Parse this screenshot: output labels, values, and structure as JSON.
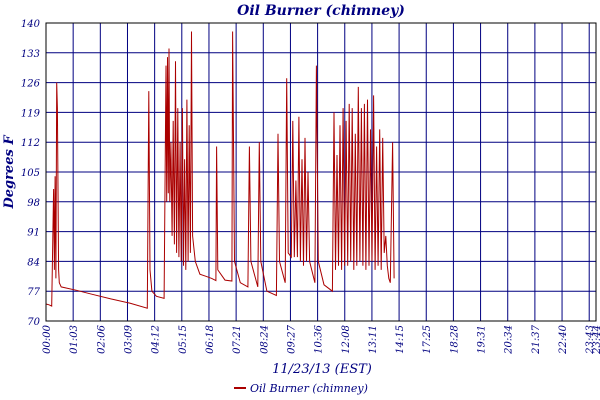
{
  "chart_data": {
    "type": "line",
    "title": "Oil Burner (chimney)",
    "xlabel": "11/23/13 (EST)",
    "ylabel": "Degrees F",
    "ylim": [
      70,
      140
    ],
    "xlim": [
      0,
      1444
    ],
    "grid": true,
    "legend_position": "bottom-center",
    "y_ticks": [
      "70",
      "77",
      "84",
      "91",
      "98",
      "105",
      "112",
      "119",
      "126",
      "133",
      "140"
    ],
    "x_ticks": [
      {
        "label": "00:00",
        "value": 0
      },
      {
        "label": "01:03",
        "value": 63
      },
      {
        "label": "02:06",
        "value": 126
      },
      {
        "label": "03:09",
        "value": 189
      },
      {
        "label": "04:12",
        "value": 252
      },
      {
        "label": "05:15",
        "value": 315
      },
      {
        "label": "06:18",
        "value": 378
      },
      {
        "label": "07:21",
        "value": 441
      },
      {
        "label": "08:24",
        "value": 504
      },
      {
        "label": "09:27",
        "value": 567
      },
      {
        "label": "10:36",
        "value": 636
      },
      {
        "label": "12:08",
        "value": 728
      },
      {
        "label": "13:11",
        "value": 791
      },
      {
        "label": "14:15",
        "value": 855
      },
      {
        "label": "17:25",
        "value": 1045
      },
      {
        "label": "18:28",
        "value": 1108
      },
      {
        "label": "19:31",
        "value": 1171
      },
      {
        "label": "20:34",
        "value": 1234
      },
      {
        "label": "21:37",
        "value": 1297
      },
      {
        "label": "22:40",
        "value": 1360
      },
      {
        "label": "23:43",
        "value": 1423
      },
      {
        "label": "23:44",
        "value": 1424
      }
    ],
    "x_tick_positions": [
      0,
      1,
      2,
      3,
      4,
      5,
      6,
      7,
      8,
      9,
      10,
      11,
      12,
      13,
      14,
      15,
      16,
      17,
      18,
      19,
      20,
      20.25
    ],
    "series": [
      {
        "name": "Oil Burner (chimney)",
        "color": "#aa0000",
        "points": [
          [
            0,
            74
          ],
          [
            8,
            73.8
          ],
          [
            15,
            73.5
          ],
          [
            20,
            101
          ],
          [
            22,
            82
          ],
          [
            24,
            104
          ],
          [
            26,
            80
          ],
          [
            28,
            126
          ],
          [
            30,
            120
          ],
          [
            33,
            82
          ],
          [
            35,
            79
          ],
          [
            40,
            78
          ],
          [
            80,
            77.2
          ],
          [
            120,
            76.3
          ],
          [
            170,
            75.2
          ],
          [
            220,
            74.2
          ],
          [
            266,
            73
          ],
          [
            270,
            124
          ],
          [
            273,
            82
          ],
          [
            278,
            77
          ],
          [
            290,
            75.8
          ],
          [
            310,
            75.3
          ],
          [
            315,
            130
          ],
          [
            317,
            98
          ],
          [
            319,
            132
          ],
          [
            321,
            100
          ],
          [
            323,
            134
          ],
          [
            325,
            98
          ],
          [
            328,
            112
          ],
          [
            331,
            90
          ],
          [
            334,
            117
          ],
          [
            337,
            88
          ],
          [
            340,
            131
          ],
          [
            343,
            86
          ],
          [
            346,
            120
          ],
          [
            349,
            85
          ],
          [
            352,
            112
          ],
          [
            355,
            84
          ],
          [
            358,
            120
          ],
          [
            361,
            83
          ],
          [
            364,
            108
          ],
          [
            367,
            82
          ],
          [
            370,
            122
          ],
          [
            373,
            84
          ],
          [
            376,
            116
          ],
          [
            379,
            86
          ],
          [
            382,
            138
          ],
          [
            385,
            90
          ],
          [
            392,
            84
          ],
          [
            404,
            81
          ],
          [
            420,
            80.5
          ],
          [
            435,
            80
          ],
          [
            446,
            79.5
          ],
          [
            448,
            111
          ],
          [
            451,
            82
          ],
          [
            470,
            79.6
          ],
          [
            488,
            79.4
          ],
          [
            490,
            138
          ],
          [
            495,
            84
          ],
          [
            510,
            79
          ],
          [
            530,
            78
          ],
          [
            534,
            111
          ],
          [
            538,
            84
          ],
          [
            556,
            78
          ],
          [
            560,
            112
          ],
          [
            564,
            84
          ],
          [
            580,
            77
          ],
          [
            605,
            76
          ],
          [
            609,
            114
          ],
          [
            613,
            84
          ],
          [
            628,
            79
          ],
          [
            632,
            127
          ],
          [
            636,
            86
          ],
          [
            644,
            85
          ],
          [
            648,
            117
          ],
          [
            652,
            85
          ],
          [
            656,
            103
          ],
          [
            660,
            85
          ],
          [
            664,
            118
          ],
          [
            668,
            84
          ],
          [
            672,
            108
          ],
          [
            676,
            83
          ],
          [
            680,
            113
          ],
          [
            684,
            84
          ],
          [
            688,
            105
          ],
          [
            692,
            84
          ],
          [
            706,
            79
          ],
          [
            710,
            130
          ],
          [
            715,
            84
          ],
          [
            730,
            78.5
          ],
          [
            752,
            77
          ],
          [
            756,
            119
          ],
          [
            760,
            82
          ],
          [
            764,
            109
          ],
          [
            768,
            83
          ],
          [
            772,
            116
          ],
          [
            776,
            82
          ],
          [
            780,
            120
          ],
          [
            784,
            83
          ],
          [
            788,
            117
          ],
          [
            792,
            83
          ],
          [
            796,
            121
          ],
          [
            800,
            84
          ],
          [
            804,
            120
          ],
          [
            808,
            82
          ],
          [
            812,
            114
          ],
          [
            816,
            83
          ],
          [
            820,
            125
          ],
          [
            824,
            84
          ],
          [
            828,
            120
          ],
          [
            832,
            83
          ],
          [
            836,
            121
          ],
          [
            840,
            82
          ],
          [
            844,
            122
          ],
          [
            848,
            83
          ],
          [
            852,
            115
          ],
          [
            856,
            84
          ],
          [
            860,
            123
          ],
          [
            864,
            82
          ],
          [
            868,
            111
          ],
          [
            872,
            83
          ],
          [
            876,
            115
          ],
          [
            880,
            82
          ],
          [
            884,
            113
          ],
          [
            888,
            86
          ],
          [
            892,
            90
          ],
          [
            896,
            83
          ],
          [
            900,
            80
          ],
          [
            904,
            79
          ],
          [
            907,
            96
          ],
          [
            910,
            112
          ],
          [
            914,
            80
          ]
        ]
      }
    ]
  },
  "legend": {
    "label": "Oil Burner (chimney)"
  }
}
